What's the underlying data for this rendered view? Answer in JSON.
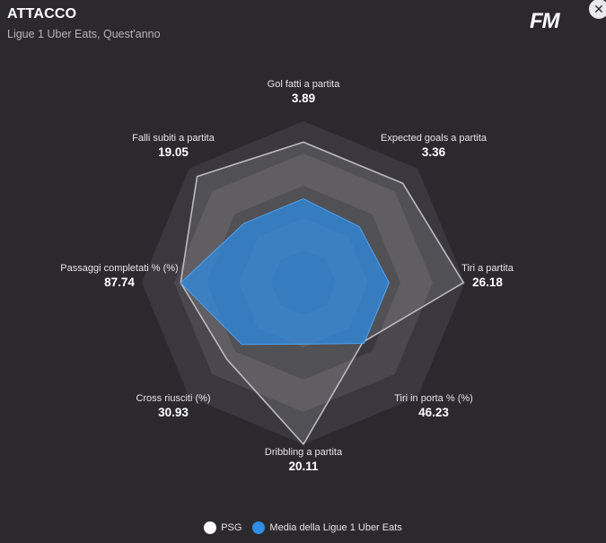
{
  "header": {
    "title": "ATTACCO",
    "subtitle": "Ligue 1 Uber Eats, Quest'anno",
    "logo_text": "FM",
    "close_glyph": "✕"
  },
  "colors": {
    "background": "#2b292d",
    "ring_dark": "#3a383e",
    "ring_light": "#4a474e",
    "team": "#ffffff",
    "league": "#2e8ee8"
  },
  "chart_data": {
    "type": "radar",
    "title": "ATTACCO",
    "subtitle": "Ligue 1 Uber Eats, Quest'anno",
    "rings": 5,
    "max": 1.0,
    "axes": [
      {
        "label": "Gol fatti a partita",
        "value_label": "3.89"
      },
      {
        "label": "Expected goals a partita",
        "value_label": "3.36"
      },
      {
        "label": "Tiri a partita",
        "value_label": "26.18"
      },
      {
        "label": "Tiri in porta % (%)",
        "value_label": "46.23"
      },
      {
        "label": "Dribbling a partita",
        "value_label": "20.11"
      },
      {
        "label": "Cross riusciti (%)",
        "value_label": "30.93"
      },
      {
        "label": "Passaggi completati % (%)",
        "value_label": "87.74"
      },
      {
        "label": "Falli subiti a partita",
        "value_label": "19.05"
      }
    ],
    "series": [
      {
        "name": "PSG",
        "color": "#ffffff",
        "values": [
          0.87,
          0.87,
          0.99,
          0.52,
          1.0,
          0.67,
          0.76,
          0.93
        ]
      },
      {
        "name": "Media della Ligue 1 Uber Eats",
        "color": "#2e8ee8",
        "values": [
          0.52,
          0.49,
          0.53,
          0.53,
          0.38,
          0.54,
          0.76,
          0.52
        ]
      }
    ],
    "legend_position": "bottom-center",
    "grid": true
  }
}
